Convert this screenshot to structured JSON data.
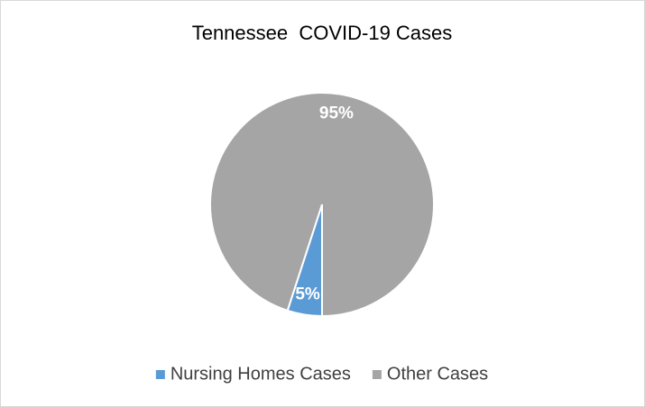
{
  "chart_data": {
    "type": "pie",
    "title": "Tennessee  COVID-19 Cases",
    "categories": [
      "Nursing Homes Cases",
      "Other Cases"
    ],
    "values": [
      5,
      95
    ],
    "value_labels": [
      "5%",
      "95%"
    ],
    "colors": [
      "#5b9bd5",
      "#a5a5a5"
    ],
    "legend": "bottom"
  }
}
